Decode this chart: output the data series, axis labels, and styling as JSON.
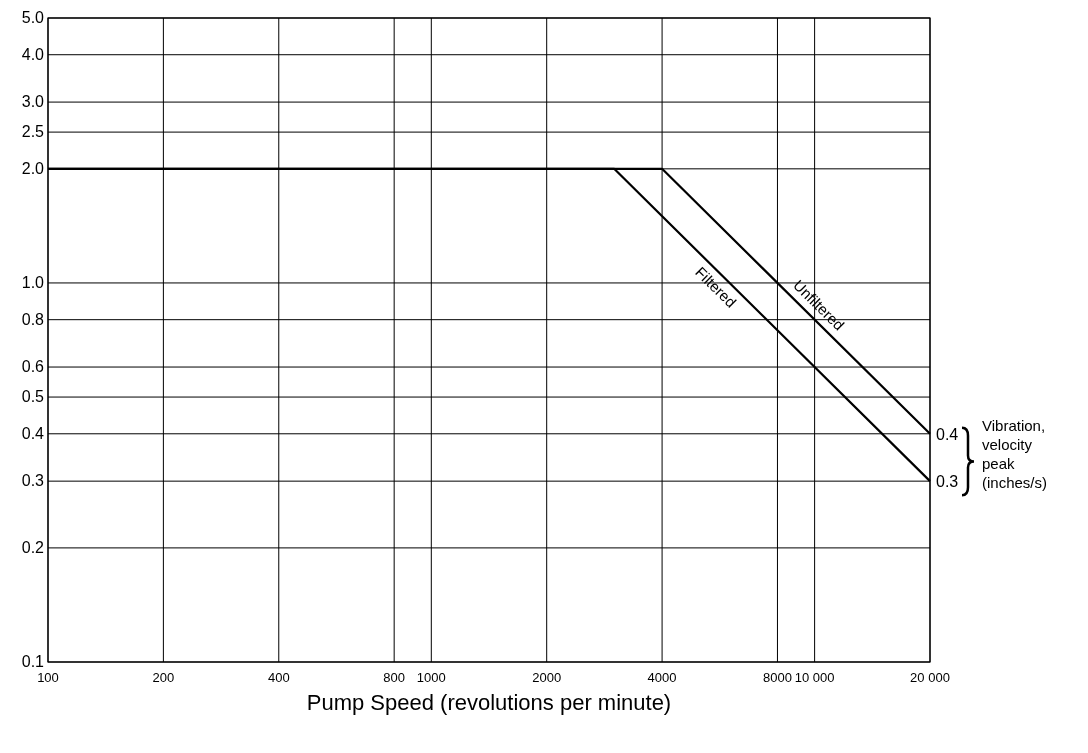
{
  "chart_data": {
    "type": "line",
    "xlabel": "Pump Speed (revolutions per minute)",
    "log": "xy",
    "grid": true,
    "legend": false,
    "marker": "none",
    "line_style": "solid",
    "xlim": [
      100,
      20000
    ],
    "xticks": [
      100,
      200,
      400,
      800,
      1000,
      2000,
      4000,
      8000,
      {
        "value": 10000,
        "label": "10 000"
      },
      {
        "value": 20000,
        "label": "20 000"
      }
    ],
    "ylim": [
      0.1,
      5.0
    ],
    "yticks": [
      {
        "value": 0.1,
        "label": "0.1"
      },
      {
        "value": 0.2,
        "label": "0.2"
      },
      {
        "value": 0.3,
        "label": "0.3"
      },
      {
        "value": 0.4,
        "label": "0.4"
      },
      {
        "value": 0.5,
        "label": "0.5"
      },
      {
        "value": 0.6,
        "label": "0.6"
      },
      {
        "value": 0.8,
        "label": "0.8"
      },
      {
        "value": 1.0,
        "label": "1.0"
      },
      {
        "value": 2.0,
        "label": "2.0"
      },
      {
        "value": 2.5,
        "label": "2.5"
      },
      {
        "value": 3.0,
        "label": "3.0"
      },
      {
        "value": 4.0,
        "label": "4.0"
      },
      {
        "value": 5.0,
        "label": "5.0"
      }
    ],
    "series": [
      {
        "name": "Unfiltered",
        "color": "#000000",
        "x": [
          100,
          4000,
          20000
        ],
        "values": [
          2.0,
          2.0,
          0.4
        ],
        "value_labels": [
          null,
          null,
          "0.4"
        ]
      },
      {
        "name": "Filtered",
        "color": "#000000",
        "x": [
          100,
          3000,
          20000
        ],
        "values": [
          2.0,
          2.0,
          0.3
        ],
        "value_labels": [
          null,
          null,
          "0.3"
        ]
      }
    ],
    "annotations": [
      "Vibration, velocity peak (inches/s)"
    ]
  }
}
